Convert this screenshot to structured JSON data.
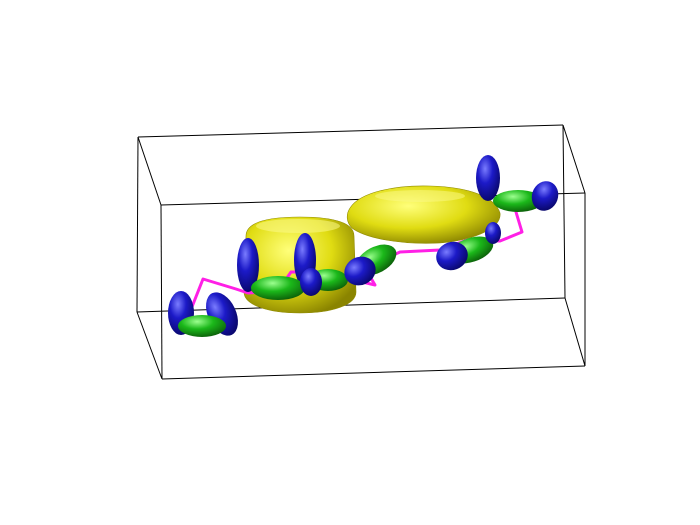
{
  "figure": {
    "kind": "3d-molecular-visualization",
    "background": "#ffffff",
    "bounding_box_color": "#000000",
    "colors": {
      "density_isosurface": "#e5e31a",
      "pi_lobe": "#1412b5",
      "sigma_bond_lobe": "#1aa418",
      "backbone_trace": "#ff1fe6"
    }
  }
}
